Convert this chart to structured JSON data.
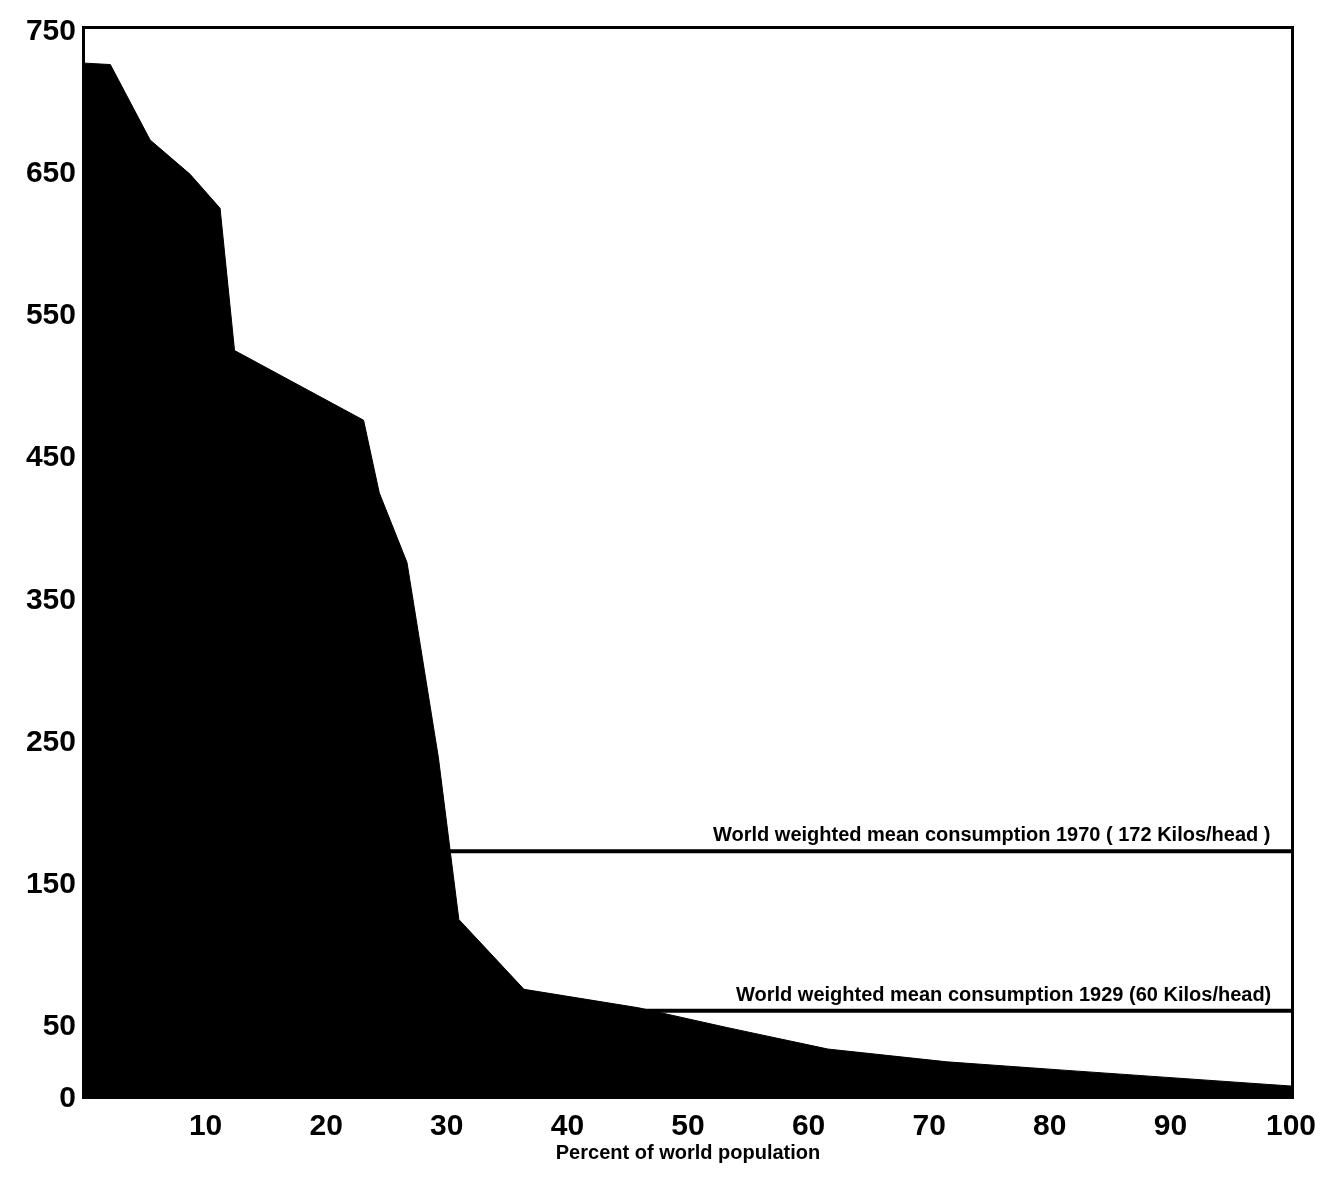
{
  "chart_data": {
    "type": "area",
    "xlabel": "Percent of world population",
    "x": [
      0,
      2.1,
      5.4,
      8.7,
      11.2,
      12.4,
      23.1,
      24.4,
      26.7,
      29.3,
      31.0,
      36.4,
      45.9,
      53.3,
      61.6,
      71.5,
      81.4,
      100
    ],
    "series": [
      {
        "color": "#000000",
        "values": [
          726,
          725,
          672,
          648,
          624,
          524,
          475,
          424,
          375,
          238,
          124,
          75,
          62,
          48,
          33,
          24,
          18,
          7
        ]
      }
    ],
    "xlim": [
      0,
      100
    ],
    "xticks": [
      10,
      20,
      30,
      40,
      50,
      60,
      70,
      80,
      90,
      100
    ],
    "ylim": [
      0,
      750
    ],
    "yticks": [
      0,
      50,
      150,
      250,
      350,
      450,
      550,
      650,
      750
    ],
    "ref_lines": [
      {
        "axis": "y",
        "value": 172,
        "label": "World weighted mean consumption 1970 ( 172 Kilos/head )",
        "color": "#000000"
      },
      {
        "axis": "y",
        "value": 60,
        "label": "World weighted mean consumption 1929 (60 Kilos/head)",
        "color": "#000000"
      }
    ],
    "line_style": "solid"
  }
}
